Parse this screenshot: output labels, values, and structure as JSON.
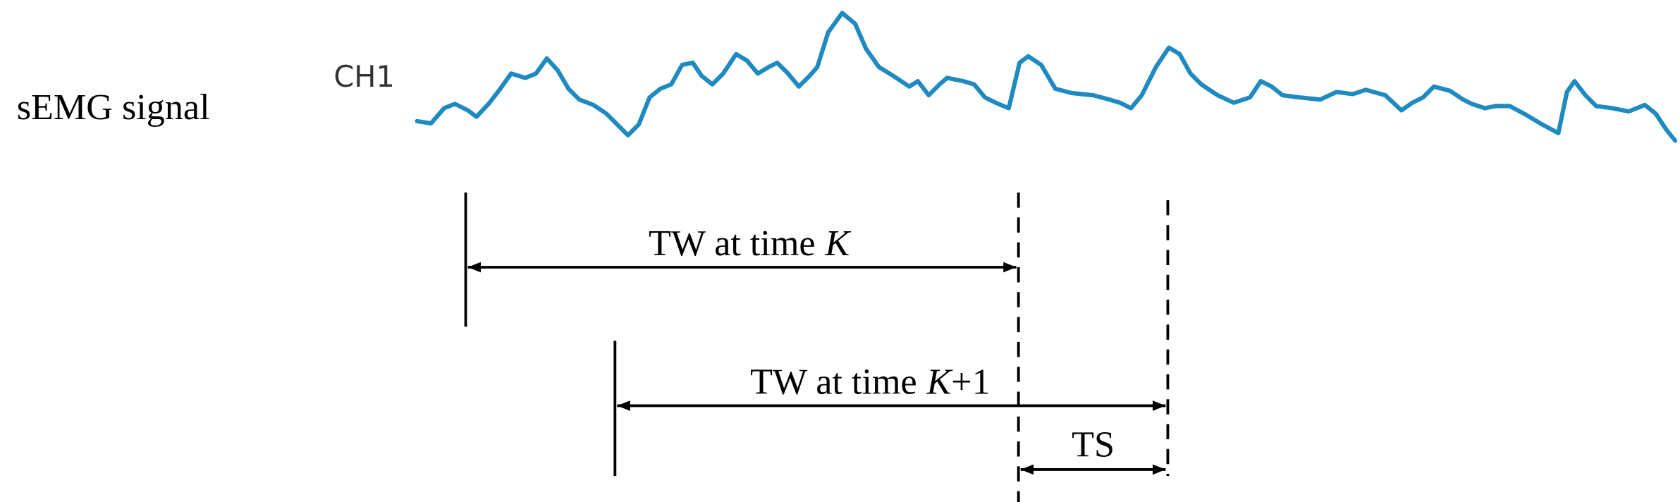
{
  "signal_label": "sEMG signal",
  "channel": "CH1",
  "window_k": {
    "prefix": "TW at time",
    "variable": "K"
  },
  "window_k1": {
    "prefix": "TW at time",
    "variable": "K",
    "suffix": "+1"
  },
  "step": "TS"
}
